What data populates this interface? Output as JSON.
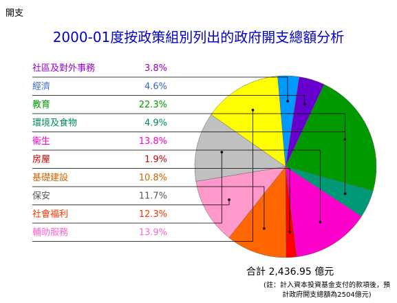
{
  "page": {
    "corner_label": "開支",
    "total": "合計 2,436.95 億元",
    "note": "(註：計入資本投資基金支付的款項後，預計政府開支總額為2504億元)"
  },
  "chart_data": {
    "type": "pie",
    "title": "2000-01度按政策組別列出的政府開支總額分析",
    "unit": "%",
    "legend_placement": "left",
    "slices": [
      {
        "label": "社區及對外事務",
        "value": 3.8,
        "value_label": "3.8%",
        "color": "#0099ff",
        "label_color": "#9900cc"
      },
      {
        "label": "經濟",
        "value": 4.6,
        "value_label": "4.6%",
        "color": "#6600cc",
        "label_color": "#3366cc"
      },
      {
        "label": "教育",
        "value": 22.3,
        "value_label": "22.3%",
        "color": "#009900",
        "label_color": "#009900"
      },
      {
        "label": "環境及食物",
        "value": 4.9,
        "value_label": "4.9%",
        "color": "#009977",
        "label_color": "#008866"
      },
      {
        "label": "衞生",
        "value": 13.8,
        "value_label": "13.8%",
        "color": "#ff00cc",
        "label_color": "#ff00cc"
      },
      {
        "label": "房屋",
        "value": 1.9,
        "value_label": "1.9%",
        "color": "#ff0000",
        "label_color": "#cc0000"
      },
      {
        "label": "基礎建設",
        "value": 10.8,
        "value_label": "10.8%",
        "color": "#ff6600",
        "label_color": "#cc6600"
      },
      {
        "label": "保安",
        "value": 11.7,
        "value_label": "11.7%",
        "color": "#ff99cc",
        "label_color": "#555555"
      },
      {
        "label": "社會福利",
        "value": 12.3,
        "value_label": "12.3%",
        "color": "#c0c0c0",
        "label_color": "#ff3300"
      },
      {
        "label": "輔助服務",
        "value": 13.9,
        "value_label": "13.9%",
        "color": "#ffff00",
        "label_color": "#ff66cc"
      }
    ]
  }
}
